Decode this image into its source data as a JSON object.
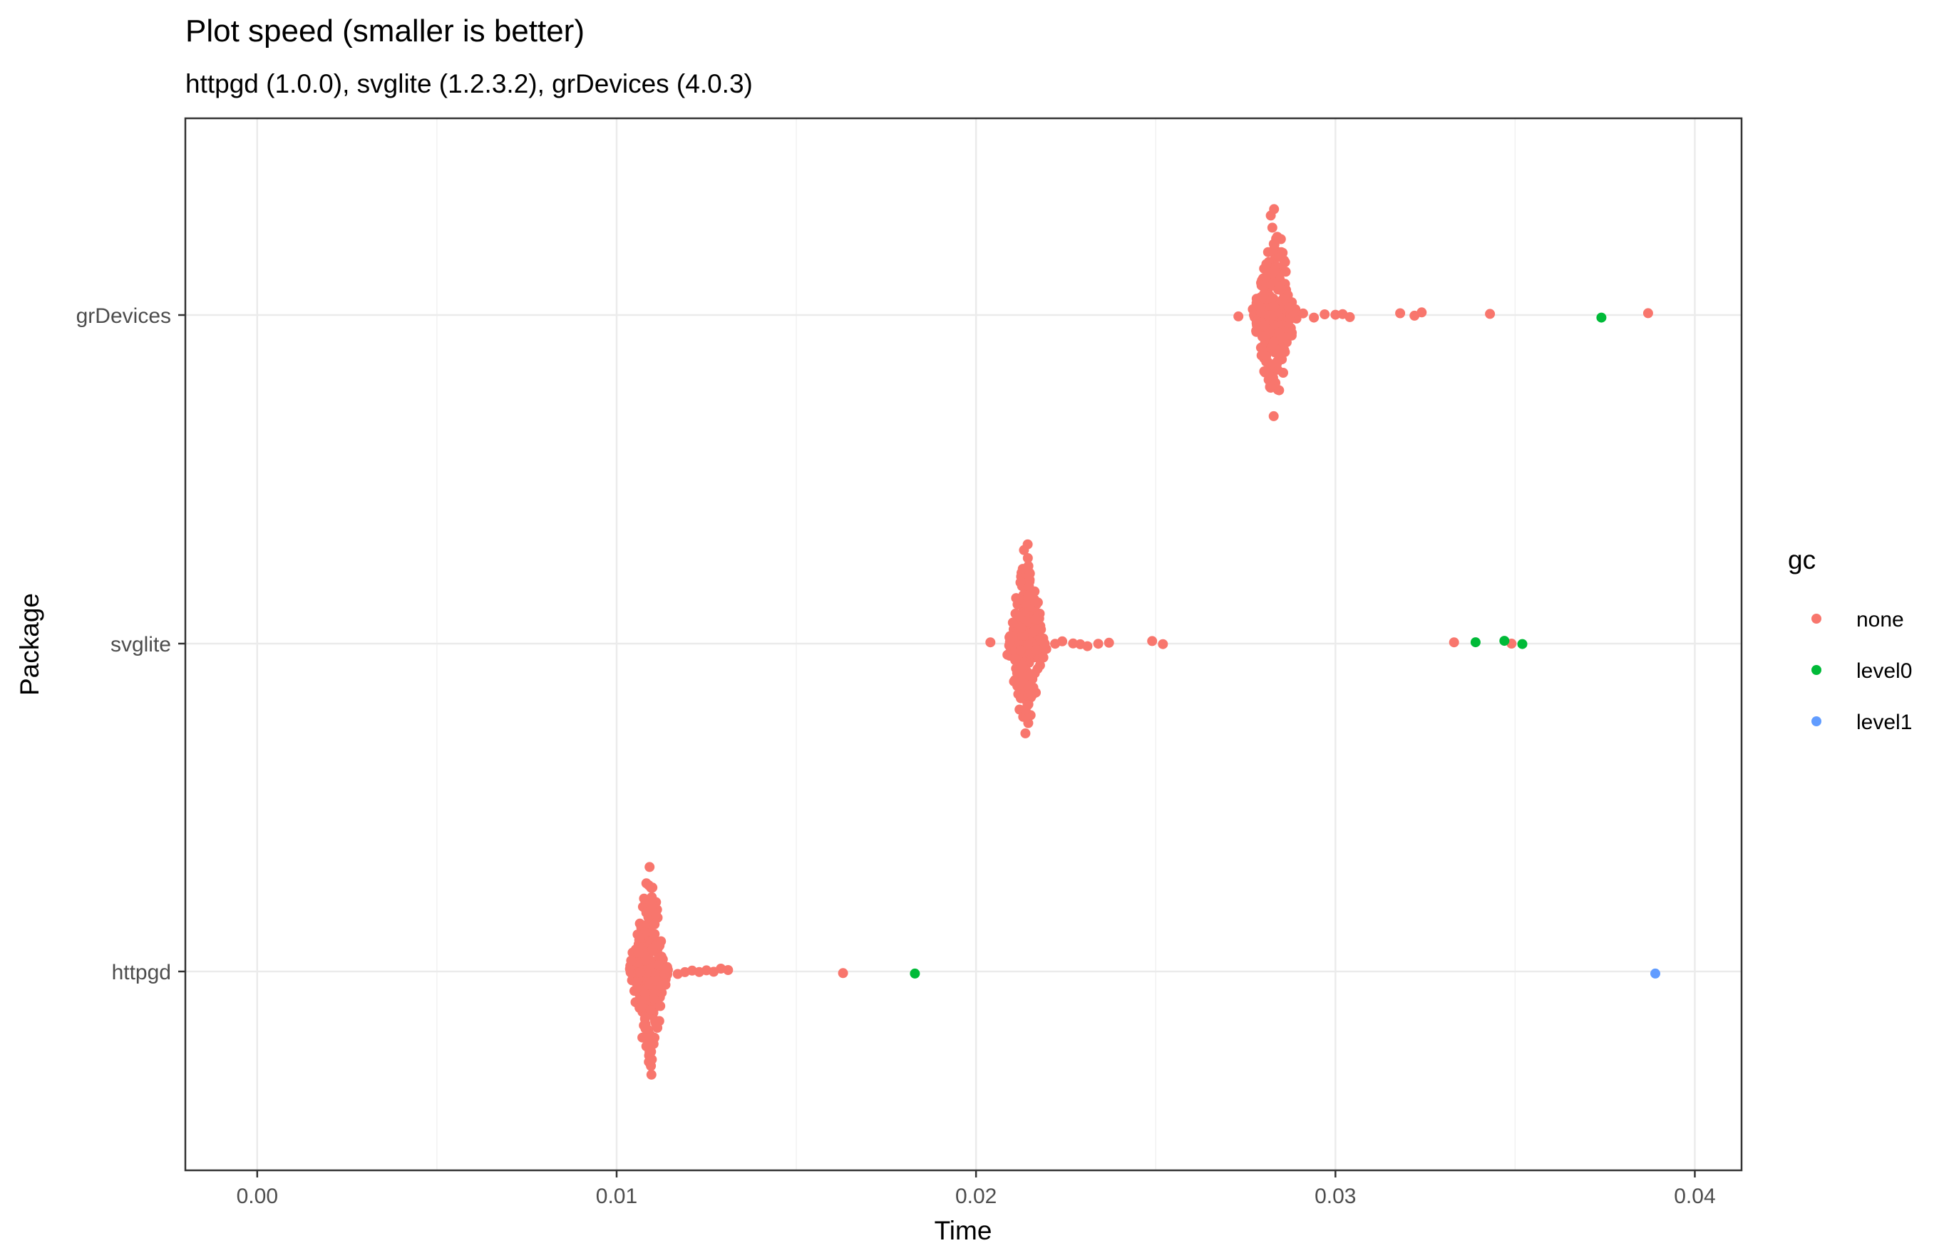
{
  "chart_data": {
    "type": "scatter",
    "title": "Plot speed (smaller is better)",
    "subtitle": "httpgd (1.0.0), svglite (1.2.3.2), grDevices (4.0.3)",
    "xlabel": "Time",
    "ylabel": "Package",
    "xlim": [
      -0.002,
      0.0413
    ],
    "x_ticks": [
      0.0,
      0.01,
      0.02,
      0.03,
      0.04
    ],
    "x_tick_labels": [
      "0.00",
      "0.01",
      "0.02",
      "0.03",
      "0.04"
    ],
    "categories": [
      "grDevices",
      "svglite",
      "httpgd"
    ],
    "grid": true,
    "plot_style": "beeswarm",
    "legend": {
      "title": "gc",
      "position": "right",
      "entries": [
        {
          "name": "none",
          "color": "#F8766D"
        },
        {
          "name": "level0",
          "color": "#00BA38"
        },
        {
          "name": "level1",
          "color": "#619CFF"
        }
      ]
    },
    "series": [
      {
        "name": "none",
        "color": "#F8766D",
        "clusters": [
          {
            "category": "httpgd",
            "center": 0.0109,
            "core_min": 0.0103,
            "core_max": 0.0113,
            "count": 260
          },
          {
            "category": "svglite",
            "center": 0.0214,
            "core_min": 0.0209,
            "core_max": 0.0219,
            "count": 260
          },
          {
            "category": "grDevices",
            "center": 0.0283,
            "core_min": 0.0277,
            "core_max": 0.0288,
            "count": 260
          }
        ],
        "points": [
          {
            "category": "httpgd",
            "x": 0.0117
          },
          {
            "category": "httpgd",
            "x": 0.0119
          },
          {
            "category": "httpgd",
            "x": 0.0121
          },
          {
            "category": "httpgd",
            "x": 0.0123
          },
          {
            "category": "httpgd",
            "x": 0.0125
          },
          {
            "category": "httpgd",
            "x": 0.0127
          },
          {
            "category": "httpgd",
            "x": 0.0129
          },
          {
            "category": "httpgd",
            "x": 0.0131
          },
          {
            "category": "httpgd",
            "x": 0.0163
          },
          {
            "category": "svglite",
            "x": 0.0204
          },
          {
            "category": "svglite",
            "x": 0.0222
          },
          {
            "category": "svglite",
            "x": 0.0224
          },
          {
            "category": "svglite",
            "x": 0.0227
          },
          {
            "category": "svglite",
            "x": 0.0229
          },
          {
            "category": "svglite",
            "x": 0.0231
          },
          {
            "category": "svglite",
            "x": 0.0234
          },
          {
            "category": "svglite",
            "x": 0.0237
          },
          {
            "category": "svglite",
            "x": 0.0249
          },
          {
            "category": "svglite",
            "x": 0.0252
          },
          {
            "category": "svglite",
            "x": 0.0333
          },
          {
            "category": "svglite",
            "x": 0.0349
          },
          {
            "category": "grDevices",
            "x": 0.0273
          },
          {
            "category": "grDevices",
            "x": 0.0291
          },
          {
            "category": "grDevices",
            "x": 0.0294
          },
          {
            "category": "grDevices",
            "x": 0.0297
          },
          {
            "category": "grDevices",
            "x": 0.03
          },
          {
            "category": "grDevices",
            "x": 0.0302
          },
          {
            "category": "grDevices",
            "x": 0.0304
          },
          {
            "category": "grDevices",
            "x": 0.0318
          },
          {
            "category": "grDevices",
            "x": 0.0322
          },
          {
            "category": "grDevices",
            "x": 0.0324
          },
          {
            "category": "grDevices",
            "x": 0.0343
          },
          {
            "category": "grDevices",
            "x": 0.0387
          }
        ]
      },
      {
        "name": "level0",
        "color": "#00BA38",
        "points": [
          {
            "category": "httpgd",
            "x": 0.0183
          },
          {
            "category": "svglite",
            "x": 0.0339
          },
          {
            "category": "svglite",
            "x": 0.0347
          },
          {
            "category": "svglite",
            "x": 0.0352
          },
          {
            "category": "grDevices",
            "x": 0.0374
          }
        ]
      },
      {
        "name": "level1",
        "color": "#619CFF",
        "points": [
          {
            "category": "httpgd",
            "x": 0.0389
          }
        ]
      }
    ]
  }
}
